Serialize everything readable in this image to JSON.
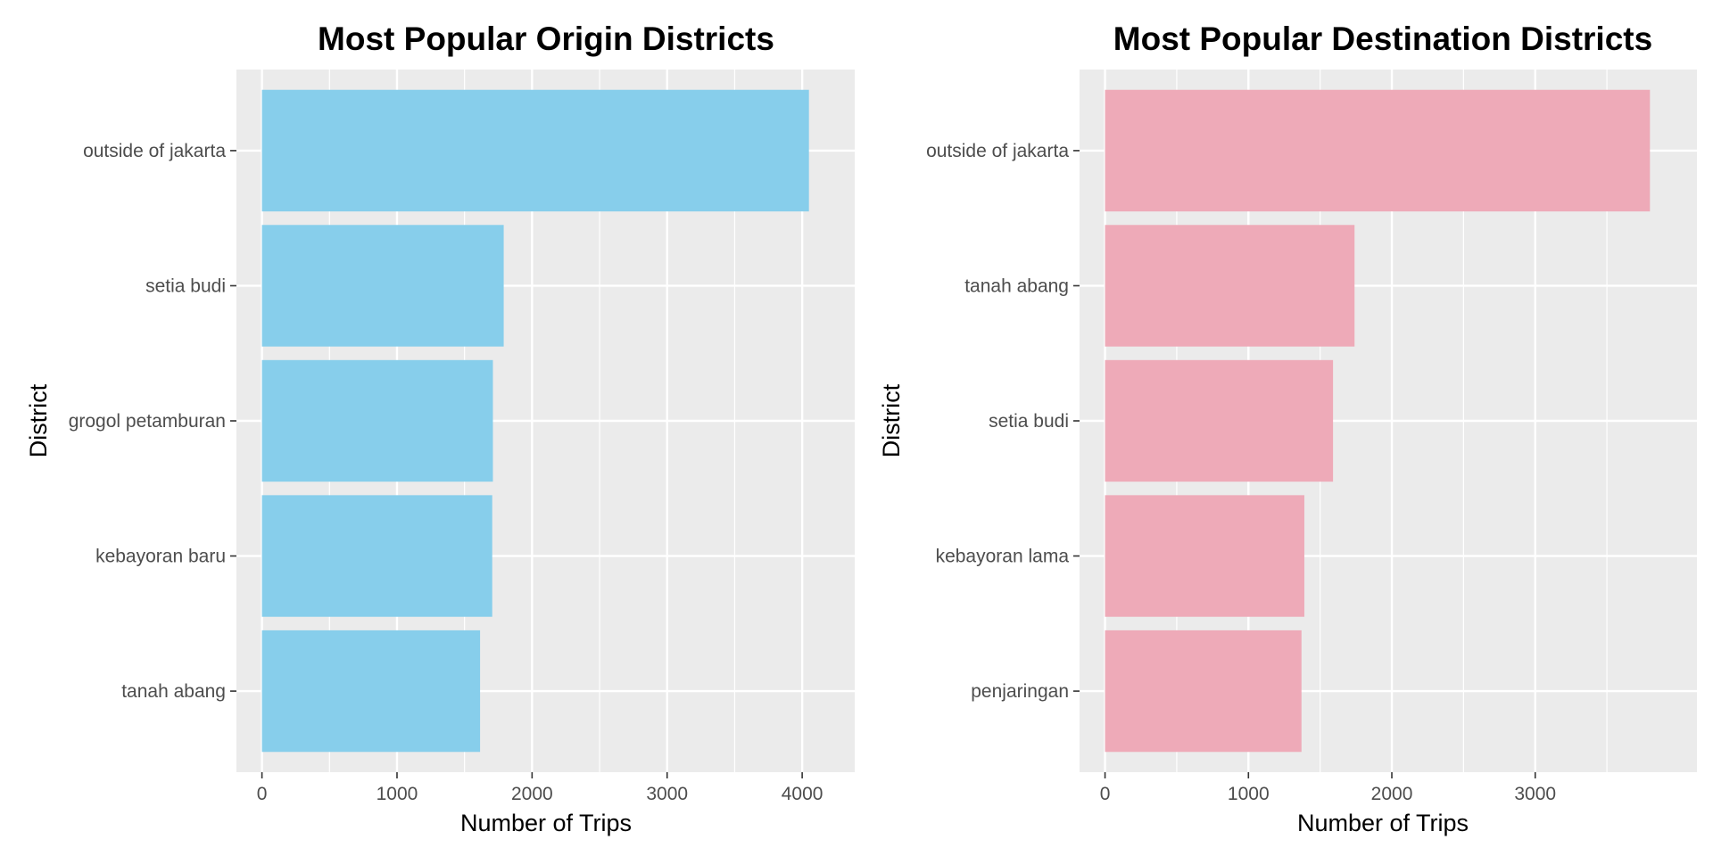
{
  "chart_data": [
    {
      "type": "bar",
      "orientation": "horizontal",
      "title": "Most Popular Origin Districts",
      "xlabel": "Number of Trips",
      "ylabel": "District",
      "categories": [
        "outside of jakarta",
        "setia budi",
        "grogol petamburan",
        "kebayoran baru",
        "tanah abang"
      ],
      "values": [
        4050,
        1790,
        1710,
        1705,
        1615
      ],
      "xlim": [
        0,
        4200
      ],
      "xticks": [
        0,
        1000,
        2000,
        3000,
        4000
      ],
      "xtick_labels": [
        "0",
        "1000",
        "2000",
        "3000",
        "4000"
      ],
      "bar_color": "#87CEEB",
      "panel_color": "#EBEBEB",
      "grid": true,
      "legend": "none"
    },
    {
      "type": "bar",
      "orientation": "horizontal",
      "title": "Most Popular Destination Districts",
      "xlabel": "Number of Trips",
      "ylabel": "District",
      "categories": [
        "outside of jakarta",
        "tanah abang",
        "setia budi",
        "kebayoran lama",
        "penjaringan"
      ],
      "values": [
        3800,
        1740,
        1590,
        1390,
        1370
      ],
      "xlim": [
        0,
        3950
      ],
      "xticks": [
        0,
        1000,
        2000,
        3000
      ],
      "xtick_labels": [
        "0",
        "1000",
        "2000",
        "3000"
      ],
      "bar_color": "#EEAAB8",
      "panel_color": "#EBEBEB",
      "grid": true,
      "legend": "none"
    }
  ]
}
